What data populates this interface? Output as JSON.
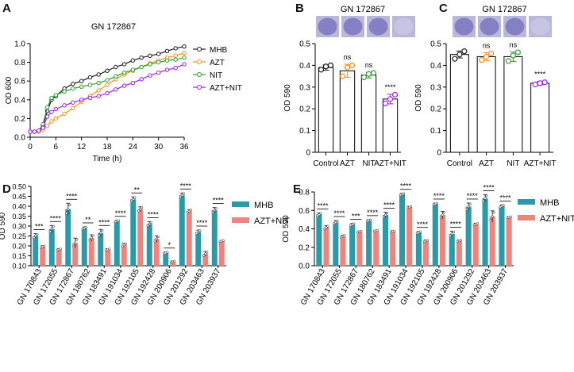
{
  "colors": {
    "mhb": "#1a1a1a",
    "azt": "#f28e1c",
    "nit": "#2ca02c",
    "combo": "#a020f0",
    "teal": "#2a9aa8",
    "salmon": "#f0837c",
    "well": "#8b86c8"
  },
  "chart_data": [
    {
      "panel": "A",
      "type": "line",
      "title": "GN 172867",
      "xlabel": "Time (h)",
      "ylabel": "OD 600",
      "xlim": [
        0,
        36
      ],
      "ylim": [
        0,
        1.0
      ],
      "xticks": [
        "0",
        "6",
        "12",
        "18",
        "24",
        "30",
        "36"
      ],
      "yticks": [
        "0.0",
        "0.2",
        "0.4",
        "0.6",
        "0.8",
        "1.0"
      ],
      "legend": "right",
      "series": [
        {
          "name": "MHB",
          "color": "#1a1a1a",
          "x": [
            0,
            1,
            2,
            3,
            4,
            5,
            6,
            8,
            10,
            12,
            14,
            16,
            18,
            20,
            22,
            24,
            26,
            28,
            30,
            32,
            34,
            36
          ],
          "y": [
            0.06,
            0.06,
            0.07,
            0.12,
            0.28,
            0.4,
            0.44,
            0.52,
            0.57,
            0.6,
            0.64,
            0.67,
            0.71,
            0.75,
            0.78,
            0.82,
            0.85,
            0.87,
            0.89,
            0.92,
            0.95,
            0.97
          ]
        },
        {
          "name": "AZT",
          "color": "#f28e1c",
          "x": [
            0,
            1,
            2,
            3,
            4,
            5,
            6,
            8,
            10,
            12,
            14,
            16,
            18,
            20,
            22,
            24,
            26,
            28,
            30,
            32,
            34,
            36
          ],
          "y": [
            0.06,
            0.06,
            0.06,
            0.08,
            0.12,
            0.17,
            0.2,
            0.25,
            0.31,
            0.38,
            0.44,
            0.5,
            0.56,
            0.62,
            0.67,
            0.71,
            0.75,
            0.79,
            0.82,
            0.85,
            0.87,
            0.9
          ]
        },
        {
          "name": "NIT",
          "color": "#2ca02c",
          "x": [
            0,
            1,
            2,
            3,
            4,
            5,
            6,
            8,
            10,
            12,
            14,
            16,
            18,
            20,
            22,
            24,
            26,
            28,
            30,
            32,
            34,
            36
          ],
          "y": [
            0.06,
            0.06,
            0.07,
            0.14,
            0.32,
            0.42,
            0.45,
            0.49,
            0.52,
            0.54,
            0.56,
            0.58,
            0.61,
            0.65,
            0.69,
            0.72,
            0.75,
            0.78,
            0.8,
            0.82,
            0.83,
            0.85
          ]
        },
        {
          "name": "AZT+NIT",
          "color": "#a020f0",
          "x": [
            0,
            1,
            2,
            3,
            4,
            5,
            6,
            8,
            10,
            12,
            14,
            16,
            18,
            20,
            22,
            24,
            26,
            28,
            30,
            32,
            34,
            36
          ],
          "y": [
            0.06,
            0.06,
            0.07,
            0.1,
            0.22,
            0.27,
            0.3,
            0.34,
            0.37,
            0.4,
            0.42,
            0.44,
            0.47,
            0.51,
            0.55,
            0.58,
            0.62,
            0.66,
            0.69,
            0.72,
            0.74,
            0.78
          ]
        }
      ]
    },
    {
      "panel": "B",
      "type": "bar",
      "title": "GN 172867",
      "ylabel": "OD 590",
      "ylim": [
        0,
        0.5
      ],
      "yticks": [
        "0",
        "0.1",
        "0.2",
        "0.3",
        "0.4",
        "0.5"
      ],
      "categories": [
        "Control",
        "AZT",
        "NIT",
        "AZT+NIT"
      ],
      "values": [
        0.39,
        0.375,
        0.355,
        0.245
      ],
      "errors": [
        0.012,
        0.03,
        0.013,
        0.022
      ],
      "points": [
        [
          0.38,
          0.395,
          0.4
        ],
        [
          0.35,
          0.39,
          0.4
        ],
        [
          0.345,
          0.36,
          0.365
        ],
        [
          0.225,
          0.245,
          0.265
        ]
      ],
      "point_colors": [
        "#1a1a1a",
        "#f28e1c",
        "#2ca02c",
        "#a020f0"
      ],
      "annotations": [
        "",
        "ns",
        "ns",
        "****"
      ]
    },
    {
      "panel": "C",
      "type": "bar",
      "title": "GN 172867",
      "ylabel": "OD 590",
      "ylim": [
        0,
        0.5
      ],
      "yticks": [
        "0",
        "0.1",
        "0.2",
        "0.3",
        "0.4",
        "0.5"
      ],
      "categories": [
        "Control",
        "AZT",
        "NIT",
        "AZT+NIT"
      ],
      "values": [
        0.45,
        0.44,
        0.44,
        0.318
      ],
      "errors": [
        0.016,
        0.018,
        0.022,
        0.008
      ],
      "points": [
        [
          0.43,
          0.45,
          0.465
        ],
        [
          0.425,
          0.44,
          0.455
        ],
        [
          0.42,
          0.445,
          0.46
        ],
        [
          0.312,
          0.318,
          0.322
        ]
      ],
      "point_colors": [
        "#1a1a1a",
        "#f28e1c",
        "#2ca02c",
        "#a020f0"
      ],
      "annotations": [
        "",
        "ns",
        "ns",
        "****"
      ]
    },
    {
      "panel": "D",
      "type": "bar",
      "ylabel": "OD 590",
      "ylim": [
        0.1,
        0.5
      ],
      "yticks": [
        "0.10",
        "0.15",
        "0.20",
        "0.25",
        "0.30",
        "0.35",
        "0.40",
        "0.45",
        "0.50"
      ],
      "categories": [
        "GN 170843",
        "GN 172055",
        "GN 172867",
        "GN 180762",
        "GN 183491",
        "GN 191034",
        "GN 192105",
        "GN 192428",
        "GN 200906",
        "GN 201292",
        "GN 203463",
        "GN 203937"
      ],
      "series": [
        {
          "name": "MHB",
          "color": "#2a9aa8",
          "values": [
            0.25,
            0.285,
            0.385,
            0.29,
            0.265,
            0.325,
            0.435,
            0.31,
            0.165,
            0.455,
            0.27,
            0.38
          ],
          "errors": [
            0.012,
            0.018,
            0.03,
            0.006,
            0.018,
            0.004,
            0.012,
            0.012,
            0.004,
            0.012,
            0.01,
            0.014
          ]
        },
        {
          "name": "AZT+NIT",
          "color": "#f0837c",
          "values": [
            0.195,
            0.182,
            0.215,
            0.24,
            0.182,
            0.205,
            0.385,
            0.235,
            0.12,
            0.375,
            0.16,
            0.225
          ],
          "errors": [
            0.006,
            0.004,
            0.024,
            0.016,
            0.004,
            0.008,
            0.012,
            0.016,
            0.004,
            0.008,
            0.012,
            0.002
          ]
        }
      ],
      "annotations": [
        "***",
        "****",
        "****",
        "**",
        "****",
        "****",
        "**",
        "****",
        "*",
        "****",
        "****",
        "****"
      ]
    },
    {
      "panel": "E",
      "type": "bar",
      "ylabel": "OD 590",
      "ylim": [
        0.0,
        0.8
      ],
      "yticks": [
        "0.0",
        "0.2",
        "0.4",
        "0.6",
        "0.8"
      ],
      "categories": [
        "GN 170843",
        "GN 172055",
        "GN 172867",
        "GN 180762",
        "GN 183491",
        "GN 191034",
        "GN 192105",
        "GN 192428",
        "GN 200906",
        "GN 201292",
        "GN 203463",
        "GN 203937"
      ],
      "series": [
        {
          "name": "MHB",
          "color": "#2a9aa8",
          "values": [
            0.555,
            0.47,
            0.445,
            0.49,
            0.55,
            0.775,
            0.36,
            0.67,
            0.345,
            0.64,
            0.73,
            0.645
          ],
          "errors": [
            0.018,
            0.02,
            0.014,
            0.01,
            0.03,
            0.01,
            0.012,
            0.01,
            0.03,
            0.04,
            0.04,
            0.014
          ]
        },
        {
          "name": "AZT+NIT",
          "color": "#f0837c",
          "values": [
            0.415,
            0.32,
            0.37,
            0.38,
            0.37,
            0.635,
            0.27,
            0.55,
            0.27,
            0.45,
            0.535,
            0.525
          ],
          "errors": [
            0.02,
            0.012,
            0.006,
            0.006,
            0.01,
            0.01,
            0.01,
            0.04,
            0.01,
            0.01,
            0.06,
            0.008
          ]
        }
      ],
      "annotations": [
        "****",
        "****",
        "***",
        "****",
        "****",
        "****",
        "****",
        "****",
        "****",
        "****",
        "****",
        "****"
      ]
    }
  ],
  "panel_labels": [
    "A",
    "B",
    "C",
    "D",
    "E"
  ]
}
